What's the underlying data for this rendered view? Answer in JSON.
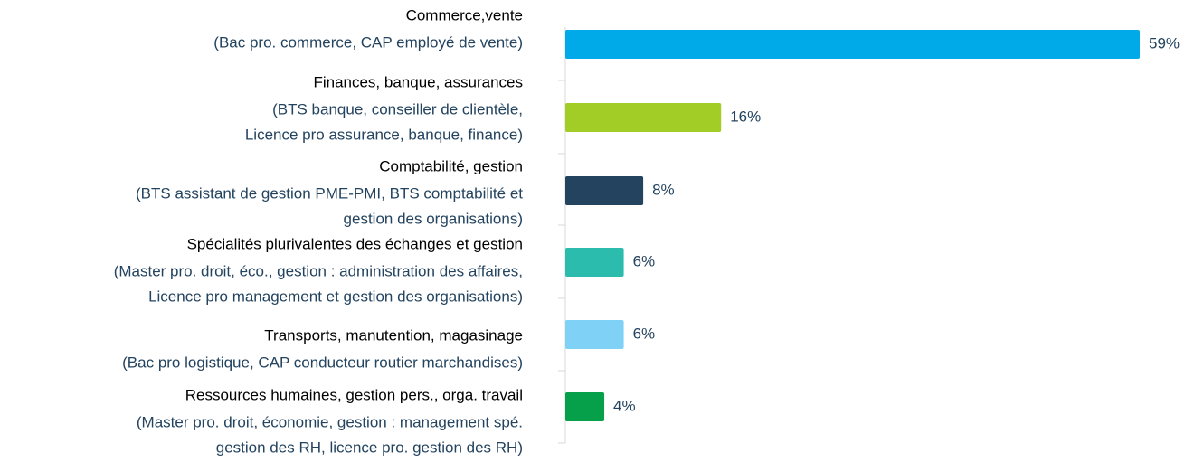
{
  "chart_data": {
    "type": "bar",
    "orientation": "horizontal",
    "categories": [
      "Commerce,vente",
      "Finances, banque, assurances",
      "Comptabilité, gestion",
      "Spécialités plurivalentes des échanges et gestion",
      "Transports, manutention, magasinage",
      "Ressources humaines, gestion pers., orga. travail"
    ],
    "descriptions": [
      [
        "(Bac pro. commerce, CAP employé de vente)"
      ],
      [
        "(BTS banque, conseiller de clientèle,",
        "Licence pro assurance, banque, finance)"
      ],
      [
        "(BTS assistant de gestion PME-PMI, BTS comptabilité et",
        "gestion des organisations)"
      ],
      [
        "(Master pro. droit, éco., gestion : administration des affaires,",
        "Licence pro management et gestion des organisations)"
      ],
      [
        "(Bac pro logistique, CAP conducteur routier marchandises)"
      ],
      [
        "(Master pro. droit, économie, gestion : management spé.",
        "gestion des RH, licence pro. gestion des RH)"
      ]
    ],
    "values": [
      59,
      16,
      8,
      6,
      6,
      4
    ],
    "value_labels": [
      "59%",
      "16%",
      "8%",
      "6%",
      "6%",
      "4%"
    ],
    "colors": [
      "#00a9e8",
      "#a2cd27",
      "#23435f",
      "#2bbcad",
      "#7fd2f5",
      "#07a04a"
    ]
  }
}
